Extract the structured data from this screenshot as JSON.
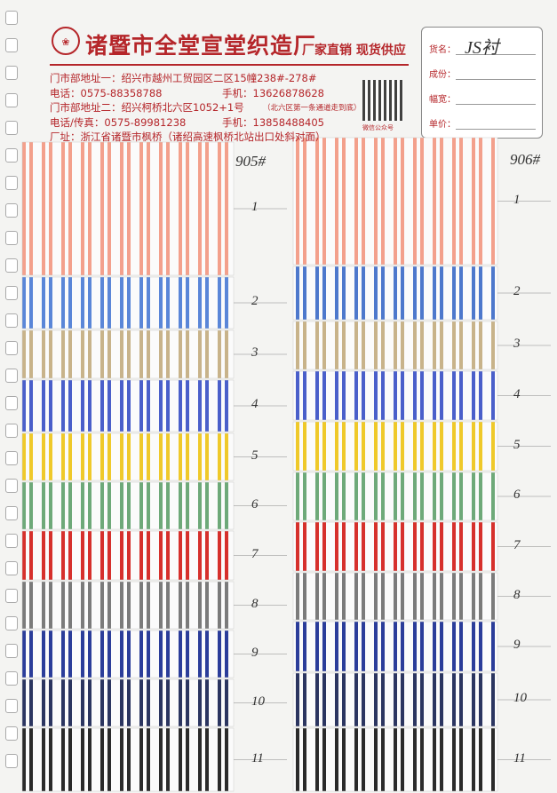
{
  "header": {
    "company": "诸暨市全堂宣堂织造厂",
    "slogan": "厂家直销 现货供应",
    "lines": [
      {
        "left": "门市部地址一：绍兴市越州工贸园区二区15幢238#-278#"
      },
      {
        "left": "电话：0575-88358788",
        "right": "手机：13626878628"
      },
      {
        "left": "门市部地址二：绍兴柯桥北六区1052+1号",
        "note": "（北六区第一条通道走到底）"
      },
      {
        "left": "电话/传真：0575-89981238",
        "right": "手机：13858488405"
      },
      {
        "left": "厂址：浙江省诸暨市枫桥（诸绍高速枫桥北站出口处斜对面）"
      }
    ],
    "wechat": "微信公众号"
  },
  "form": {
    "fields": [
      {
        "label": "货名：",
        "value": "JS衬"
      },
      {
        "label": "成份："
      },
      {
        "label": "幅宽："
      },
      {
        "label": "单价："
      }
    ]
  },
  "columns": [
    {
      "label": "905#",
      "swatches": [
        {
          "number": "1",
          "color": "#f3a08c"
        },
        {
          "number": "2",
          "color": "#5a86d8"
        },
        {
          "number": "3",
          "color": "#c8b38a"
        },
        {
          "number": "4",
          "color": "#4a5fca"
        },
        {
          "number": "5",
          "color": "#efc92a"
        },
        {
          "number": "6",
          "color": "#6ea979"
        },
        {
          "number": "7",
          "color": "#d6302c"
        },
        {
          "number": "8",
          "color": "#7b7b7b"
        },
        {
          "number": "9",
          "color": "#2b3d9a"
        },
        {
          "number": "10",
          "color": "#2b3560"
        },
        {
          "number": "11",
          "color": "#2a2a2a"
        }
      ]
    },
    {
      "label": "906#",
      "swatches": [
        {
          "number": "1",
          "color": "#f3a08c"
        },
        {
          "number": "2",
          "color": "#4d78cc"
        },
        {
          "number": "3",
          "color": "#c8b38a"
        },
        {
          "number": "4",
          "color": "#4a5fca"
        },
        {
          "number": "5",
          "color": "#efc92a"
        },
        {
          "number": "6",
          "color": "#6ea979"
        },
        {
          "number": "7",
          "color": "#d6302c"
        },
        {
          "number": "8",
          "color": "#7b7b7b"
        },
        {
          "number": "9",
          "color": "#2b3d9a"
        },
        {
          "number": "10",
          "color": "#2b3560"
        },
        {
          "number": "11",
          "color": "#2a2a2a"
        }
      ]
    }
  ]
}
